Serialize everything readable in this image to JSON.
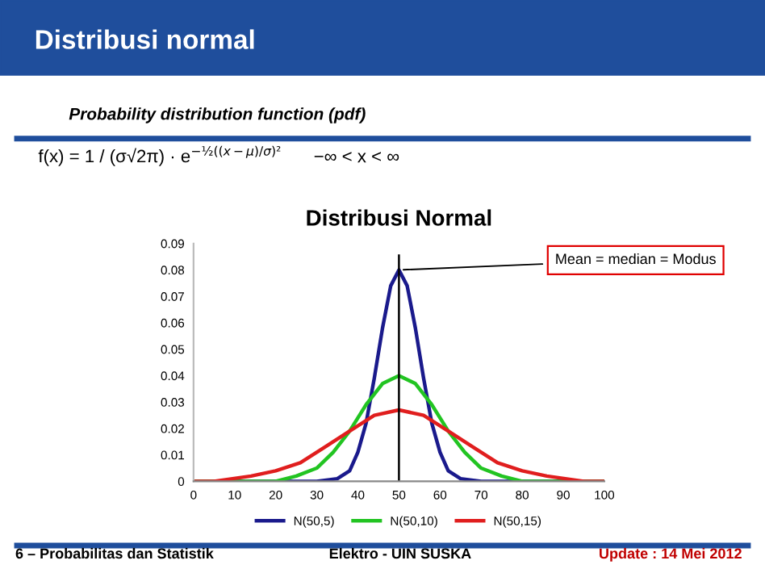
{
  "chart_data": {
    "type": "line",
    "title": "Distribusi Normal",
    "annotations": [
      "Distribusi normal",
      "Probability distribution function (pdf)",
      "f(x) = 1 / (σ√2π) · e$^{−½((x−μ)/σ)²}$",
      "−∞ < x < ∞",
      {
        "text": "Mean = median = Modus",
        "x": 50,
        "y": 0.08
      },
      "6 – Probabilitas dan Statistik",
      "Elektro - UIN SUSKA",
      "Update : 14 Mei 2012"
    ],
    "series": [
      {
        "name": "N(50,5)",
        "color": "#1a1a8c",
        "x": [
          0,
          20,
          30,
          35,
          38,
          40,
          42,
          44,
          46,
          48,
          50,
          52,
          54,
          56,
          58,
          60,
          62,
          65,
          70,
          80,
          100
        ],
        "values": [
          0,
          0,
          0,
          0.001,
          0.004,
          0.011,
          0.022,
          0.039,
          0.058,
          0.074,
          0.08,
          0.074,
          0.058,
          0.039,
          0.022,
          0.011,
          0.004,
          0.001,
          0,
          0,
          0
        ]
      },
      {
        "name": "N(50,10)",
        "color": "#22c422",
        "x": [
          0,
          10,
          20,
          25,
          30,
          34,
          38,
          42,
          46,
          50,
          54,
          58,
          62,
          66,
          70,
          75,
          80,
          90,
          100
        ],
        "values": [
          0,
          0,
          0,
          0.002,
          0.005,
          0.011,
          0.019,
          0.029,
          0.037,
          0.04,
          0.037,
          0.029,
          0.019,
          0.011,
          0.005,
          0.002,
          0,
          0,
          0
        ]
      },
      {
        "name": "N(50,15)",
        "color": "#e01e1e",
        "x": [
          0,
          5,
          14,
          20,
          26,
          32,
          38,
          44,
          50,
          56,
          62,
          68,
          74,
          80,
          86,
          95,
          100
        ],
        "values": [
          0,
          0,
          0.002,
          0.004,
          0.007,
          0.013,
          0.019,
          0.025,
          0.027,
          0.025,
          0.019,
          0.013,
          0.007,
          0.004,
          0.002,
          0,
          0
        ]
      }
    ],
    "ref_lines": [
      {
        "axis": "x",
        "value": 50,
        "color": "#000000"
      }
    ],
    "xlim": [
      0,
      100
    ],
    "xticks": [
      0,
      10,
      20,
      30,
      40,
      50,
      60,
      70,
      80,
      90,
      100
    ],
    "ylim": [
      0,
      0.09
    ],
    "yticks": [
      0,
      0.01,
      0.02,
      0.03,
      0.04,
      0.05,
      0.06,
      0.07,
      0.08,
      0.09
    ],
    "legend": "bottom",
    "grid": false,
    "marker": "none",
    "line_style": "solid"
  }
}
